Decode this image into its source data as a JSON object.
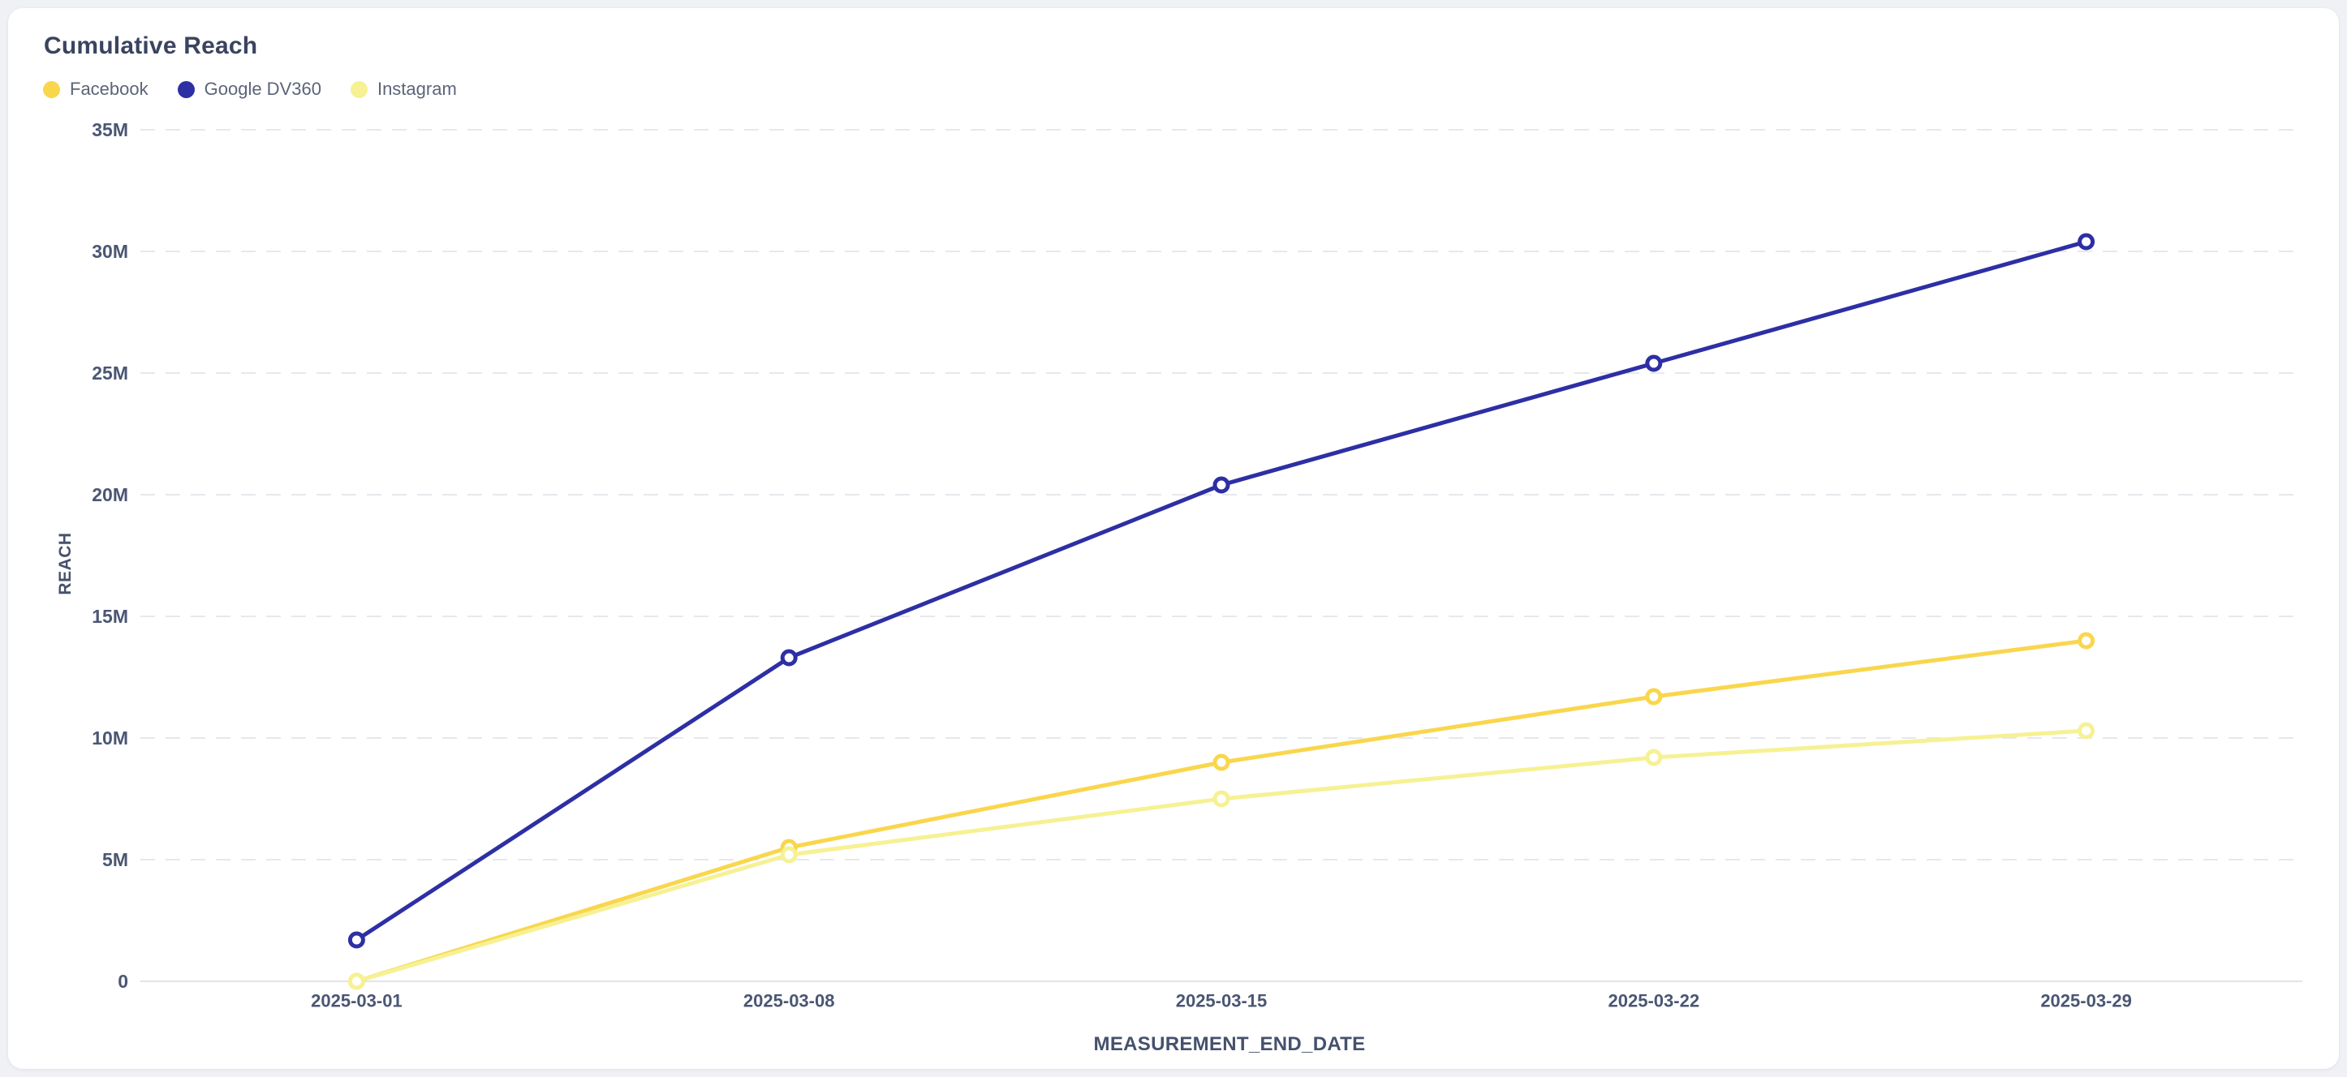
{
  "page": {
    "background_color": "#eff1f5"
  },
  "card": {
    "background_color": "#ffffff"
  },
  "chart_data": {
    "type": "line",
    "title": "Cumulative Reach",
    "xlabel": "MEASUREMENT_END_DATE",
    "ylabel": "REACH",
    "x": [
      "2025-03-01",
      "2025-03-08",
      "2025-03-15",
      "2025-03-22",
      "2025-03-29"
    ],
    "series": [
      {
        "name": "Facebook",
        "color": "#F9D64C",
        "values_millions": [
          0,
          5.5,
          9.0,
          11.7,
          14.0
        ]
      },
      {
        "name": "Google DV360",
        "color": "#2D2FA4",
        "values_millions": [
          1.7,
          13.3,
          20.4,
          25.4,
          30.4
        ]
      },
      {
        "name": "Instagram",
        "color": "#F6F193",
        "values_millions": [
          0,
          5.2,
          7.5,
          9.2,
          10.3
        ]
      }
    ],
    "value_unit": "M (millions reached)",
    "ylim_millions": [
      0,
      35
    ],
    "yticks_millions": [
      0,
      5,
      10,
      15,
      20,
      25,
      30,
      35
    ],
    "ytick_labels": [
      "0",
      "5M",
      "10M",
      "15M",
      "20M",
      "25M",
      "30M",
      "35M"
    ],
    "grid": "horizontal dashed gridlines, solid zero axis line",
    "legend_position": "top-left",
    "marker": "hollow-circle"
  },
  "theme": {
    "title_color": "#3a4460",
    "legend_text_color": "#5c6478",
    "tick_text_color": "#4a5673",
    "axis_title_color": "#45516d",
    "gridline_color": "#e7e8ec",
    "zero_line_color": "#e1e4e9"
  }
}
